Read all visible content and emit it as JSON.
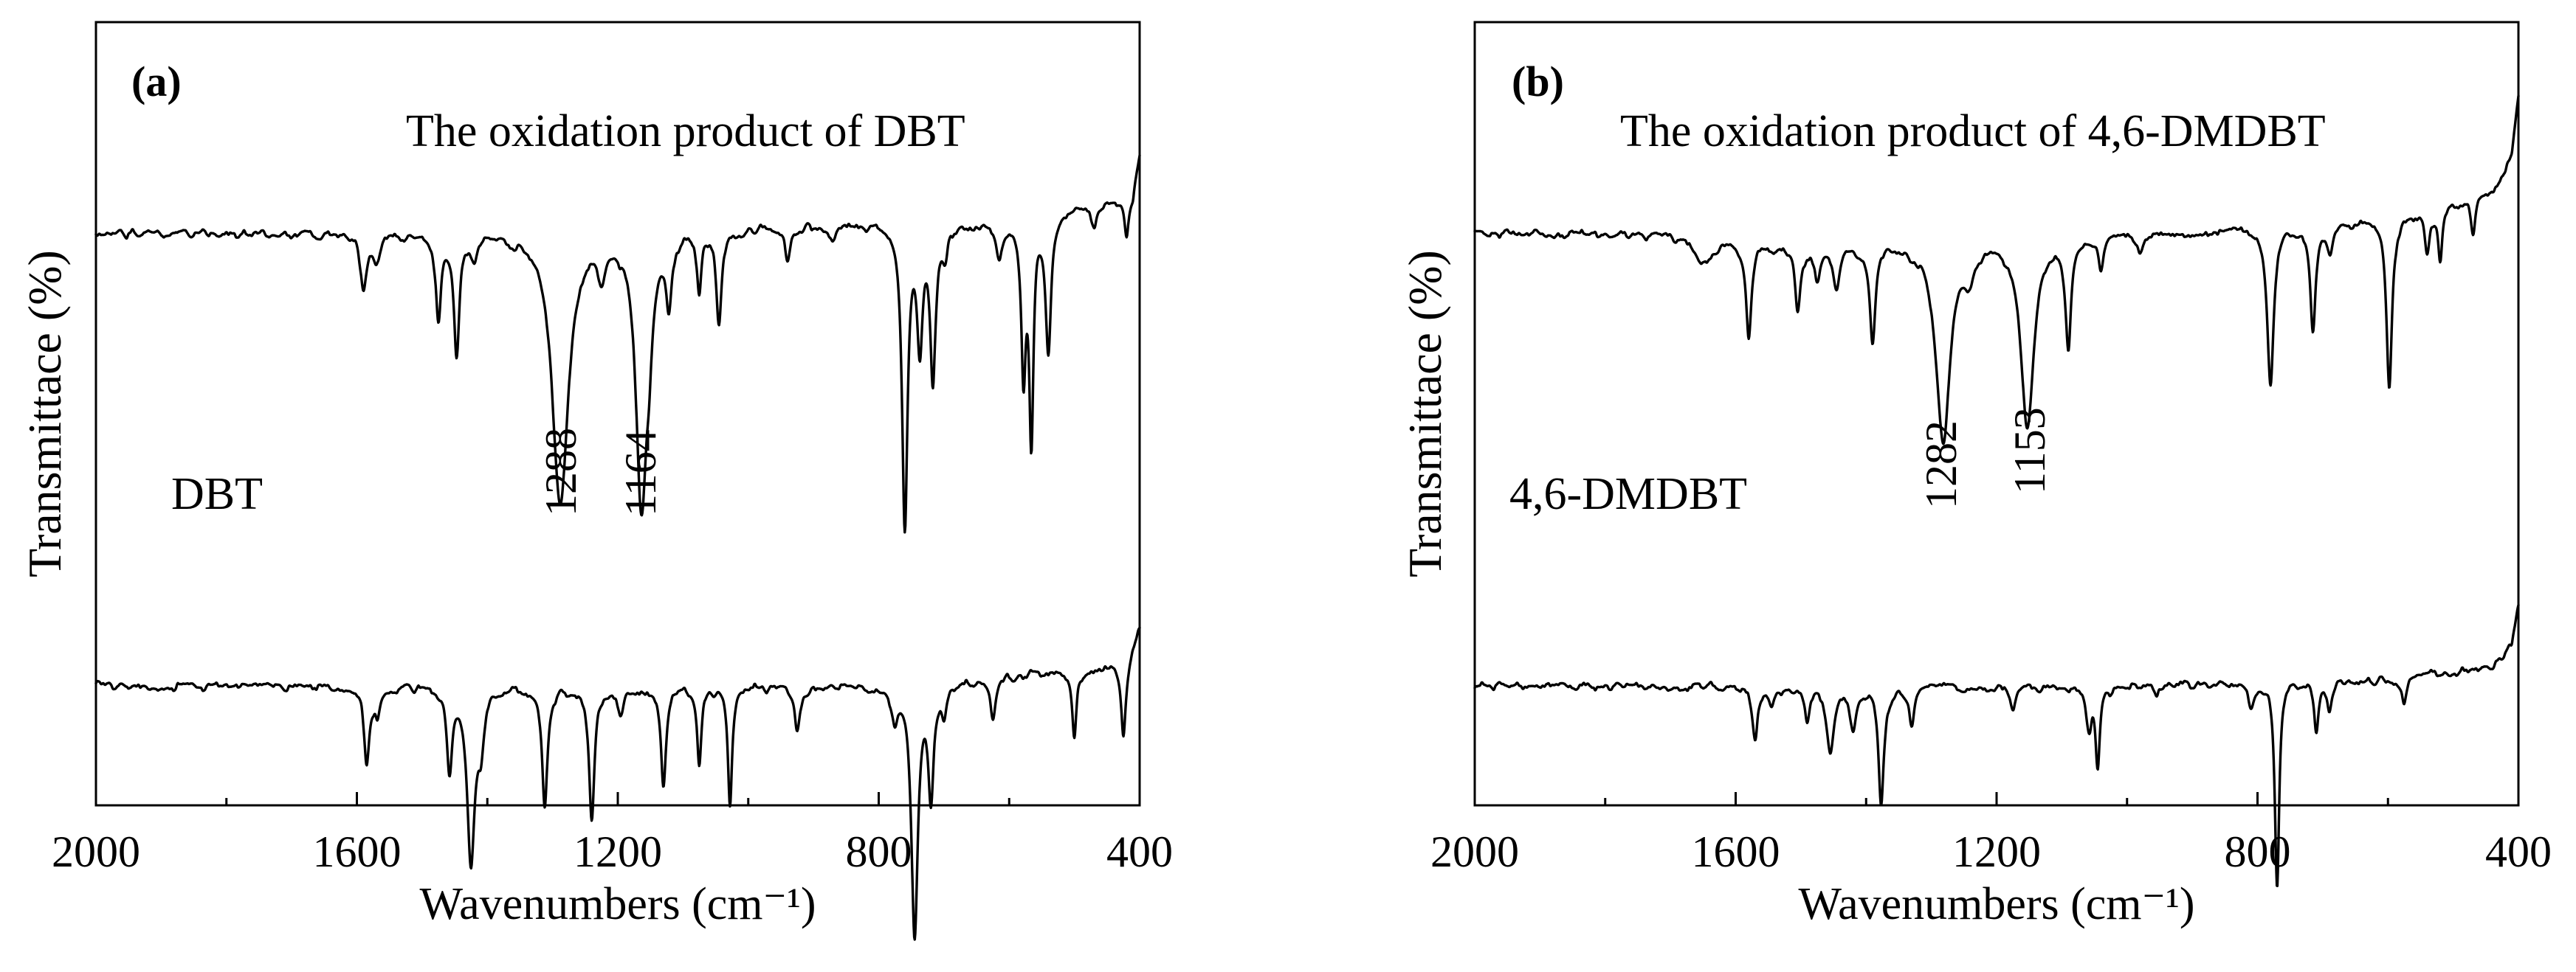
{
  "chart_data": [
    {
      "type": "line",
      "panel_label": "(a)",
      "xlabel": "Wavenumbers (cm⁻¹)",
      "ylabel": "Transmittace (%)",
      "xlim": [
        2000,
        400
      ],
      "x_ticks": [
        "2000",
        "1600",
        "1200",
        "800",
        "400"
      ],
      "y_ticks": [],
      "series": [
        {
          "name": "The oxidation product of DBT",
          "baseline": 0.8,
          "drift": [
            [
              2000,
              0
            ],
            [
              1500,
              0
            ],
            [
              1000,
              0.01
            ],
            [
              600,
              0.02
            ],
            [
              410,
              0.06
            ],
            [
              400,
              0.12
            ]
          ],
          "bands": [
            [
              1590,
              0.08,
              6
            ],
            [
              1570,
              0.04,
              6
            ],
            [
              1475,
              0.12,
              5
            ],
            [
              1447,
              0.18,
              5
            ],
            [
              1420,
              0.03,
              6
            ],
            [
              1288,
              0.41,
              15
            ],
            [
              1225,
              0.05,
              8
            ],
            [
              1164,
              0.4,
              10
            ],
            [
              1152,
              0.1,
              6
            ],
            [
              1122,
              0.1,
              5
            ],
            [
              1075,
              0.09,
              4
            ],
            [
              1045,
              0.14,
              5
            ],
            [
              940,
              0.05,
              5
            ],
            [
              870,
              0.02,
              6
            ],
            [
              760,
              0.45,
              5
            ],
            [
              737,
              0.17,
              5
            ],
            [
              717,
              0.23,
              5
            ],
            [
              698,
              0.04,
              5
            ],
            [
              615,
              0.05,
              6
            ],
            [
              578,
              0.22,
              4
            ],
            [
              566,
              0.32,
              4
            ],
            [
              540,
              0.2,
              5
            ],
            [
              470,
              0.04,
              5
            ],
            [
              420,
              0.06,
              4
            ]
          ]
        },
        {
          "name": "DBT",
          "baseline": 0.12,
          "drift": [
            [
              2000,
              0
            ],
            [
              800,
              0
            ],
            [
              420,
              0.03
            ],
            [
              400,
              0.09
            ]
          ],
          "bands": [
            [
              1585,
              0.12,
              5
            ],
            [
              1568,
              0.04,
              5
            ],
            [
              1458,
              0.12,
              5
            ],
            [
              1425,
              0.26,
              7
            ],
            [
              1410,
              0.07,
              6
            ],
            [
              1312,
              0.18,
              5
            ],
            [
              1240,
              0.2,
              5
            ],
            [
              1195,
              0.04,
              6
            ],
            [
              1130,
              0.15,
              5
            ],
            [
              1075,
              0.12,
              4
            ],
            [
              1028,
              0.18,
              4
            ],
            [
              925,
              0.07,
              5
            ],
            [
              775,
              0.05,
              5
            ],
            [
              745,
              0.38,
              6
            ],
            [
              720,
              0.16,
              5
            ],
            [
              700,
              0.05,
              5
            ],
            [
              625,
              0.06,
              5
            ],
            [
              500,
              0.1,
              4
            ],
            [
              425,
              0.1,
              4
            ]
          ]
        }
      ],
      "annotations": [
        "1288",
        "1164"
      ]
    },
    {
      "type": "line",
      "panel_label": "(b)",
      "xlabel": "Wavenumbers (cm⁻¹)",
      "ylabel": "Transmittace (%)",
      "xlim": [
        2000,
        400
      ],
      "x_ticks": [
        "2000",
        "1600",
        "1200",
        "800",
        "400"
      ],
      "y_ticks": [],
      "series": [
        {
          "name": "The oxidation product of 4,6-DMDBT",
          "baseline": 0.8,
          "drift": [
            [
              2000,
              0
            ],
            [
              1700,
              0
            ],
            [
              1500,
              -0.02
            ],
            [
              1000,
              0
            ],
            [
              600,
              0.02
            ],
            [
              440,
              0.06
            ],
            [
              410,
              0.12
            ],
            [
              400,
              0.2
            ]
          ],
          "bands": [
            [
              1650,
              0.04,
              18
            ],
            [
              1580,
              0.14,
              5
            ],
            [
              1505,
              0.09,
              5
            ],
            [
              1475,
              0.05,
              6
            ],
            [
              1445,
              0.06,
              6
            ],
            [
              1390,
              0.14,
              5
            ],
            [
              1282,
              0.3,
              13
            ],
            [
              1242,
              0.04,
              8
            ],
            [
              1153,
              0.28,
              12
            ],
            [
              1090,
              0.16,
              5
            ],
            [
              1040,
              0.05,
              5
            ],
            [
              980,
              0.03,
              6
            ],
            [
              780,
              0.24,
              6
            ],
            [
              715,
              0.16,
              5
            ],
            [
              688,
              0.04,
              5
            ],
            [
              598,
              0.25,
              5
            ],
            [
              540,
              0.06,
              4
            ],
            [
              520,
              0.08,
              4
            ],
            [
              470,
              0.05,
              4
            ]
          ]
        },
        {
          "name": "4,6-DMDBT",
          "baseline": 0.12,
          "drift": [
            [
              2000,
              0
            ],
            [
              1000,
              0
            ],
            [
              600,
              0.01
            ],
            [
              440,
              0.03
            ],
            [
              410,
              0.06
            ],
            [
              400,
              0.12
            ]
          ],
          "bands": [
            [
              1570,
              0.08,
              5
            ],
            [
              1545,
              0.03,
              5
            ],
            [
              1490,
              0.05,
              5
            ],
            [
              1455,
              0.1,
              7
            ],
            [
              1420,
              0.06,
              6
            ],
            [
              1377,
              0.18,
              5
            ],
            [
              1330,
              0.06,
              5
            ],
            [
              1175,
              0.04,
              5
            ],
            [
              1058,
              0.06,
              5
            ],
            [
              1045,
              0.12,
              4
            ],
            [
              955,
              0.02,
              5
            ],
            [
              810,
              0.03,
              5
            ],
            [
              770,
              0.31,
              4
            ],
            [
              710,
              0.07,
              4
            ],
            [
              690,
              0.04,
              4
            ],
            [
              575,
              0.04,
              5
            ]
          ]
        }
      ],
      "annotations": [
        "1282",
        "1153"
      ]
    }
  ]
}
